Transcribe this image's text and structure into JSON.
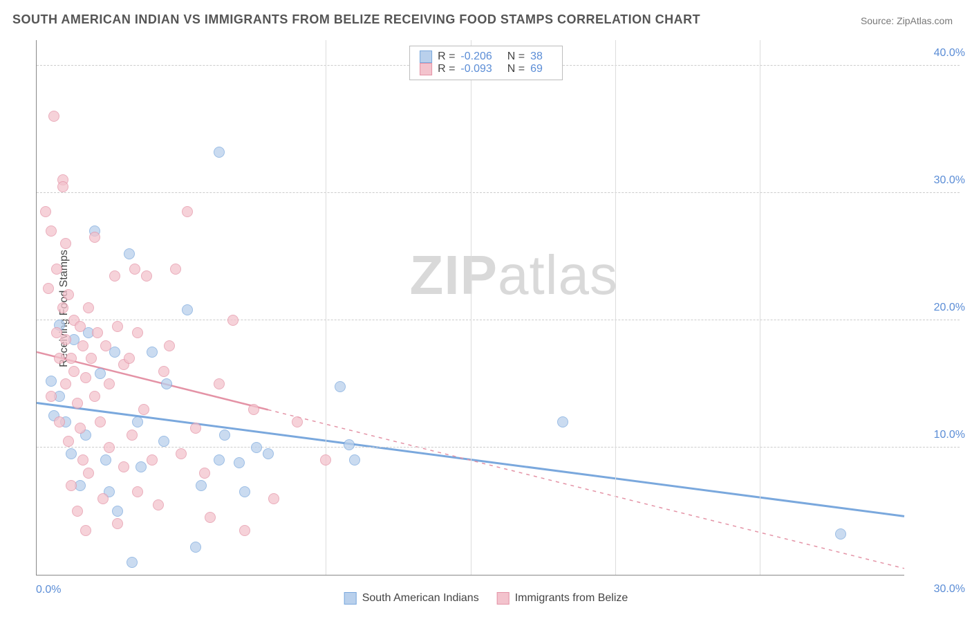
{
  "title": "SOUTH AMERICAN INDIAN VS IMMIGRANTS FROM BELIZE RECEIVING FOOD STAMPS CORRELATION CHART",
  "source_label": "Source: ",
  "source_name": "ZipAtlas.com",
  "ylabel": "Receiving Food Stamps",
  "watermark_bold": "ZIP",
  "watermark_light": "atlas",
  "chart": {
    "type": "scatter",
    "x_range": [
      0,
      30
    ],
    "y_range": [
      0,
      42
    ],
    "y_ticks": [
      10,
      20,
      30,
      40
    ],
    "y_tick_labels": [
      "10.0%",
      "20.0%",
      "30.0%",
      "40.0%"
    ],
    "x_tick_left": "0.0%",
    "x_tick_right": "30.0%",
    "x_minor_positions": [
      10,
      15,
      20,
      25
    ],
    "background": "#ffffff",
    "grid_color": "#cccccc",
    "axis_color": "#888888",
    "marker_radius": 8,
    "marker_opacity": 0.75
  },
  "series": [
    {
      "name": "South American Indians",
      "color_fill": "#b9d0ec",
      "color_stroke": "#7aa8dd",
      "R": "-0.206",
      "N": "38",
      "trend": {
        "x1": 0,
        "y1": 13.5,
        "x2": 30,
        "y2": 4.6,
        "solid_until_x": 30,
        "width": 3
      },
      "points": [
        [
          0.5,
          15.2
        ],
        [
          0.6,
          12.5
        ],
        [
          0.8,
          19.6
        ],
        [
          0.8,
          14.0
        ],
        [
          1.0,
          12.0
        ],
        [
          1.2,
          9.5
        ],
        [
          1.3,
          18.5
        ],
        [
          1.5,
          7.0
        ],
        [
          1.7,
          11.0
        ],
        [
          1.8,
          19.0
        ],
        [
          2.0,
          27.0
        ],
        [
          2.2,
          15.8
        ],
        [
          2.4,
          9.0
        ],
        [
          2.5,
          6.5
        ],
        [
          2.7,
          17.5
        ],
        [
          2.8,
          5.0
        ],
        [
          3.2,
          25.2
        ],
        [
          3.3,
          1.0
        ],
        [
          3.5,
          12.0
        ],
        [
          3.6,
          8.5
        ],
        [
          4.0,
          17.5
        ],
        [
          4.4,
          10.5
        ],
        [
          4.5,
          15.0
        ],
        [
          5.2,
          20.8
        ],
        [
          5.5,
          2.2
        ],
        [
          5.7,
          7.0
        ],
        [
          6.3,
          33.2
        ],
        [
          6.3,
          9.0
        ],
        [
          6.5,
          11.0
        ],
        [
          7.0,
          8.8
        ],
        [
          7.2,
          6.5
        ],
        [
          7.6,
          10.0
        ],
        [
          8.0,
          9.5
        ],
        [
          10.5,
          14.8
        ],
        [
          10.8,
          10.2
        ],
        [
          11.0,
          9.0
        ],
        [
          18.2,
          12.0
        ],
        [
          27.8,
          3.2
        ]
      ]
    },
    {
      "name": "Immigrants from Belize",
      "color_fill": "#f3c3cd",
      "color_stroke": "#e493a6",
      "R": "-0.093",
      "N": "69",
      "trend": {
        "x1": 0,
        "y1": 17.5,
        "x2": 30,
        "y2": 0.5,
        "solid_until_x": 8,
        "width": 2.5
      },
      "points": [
        [
          0.3,
          28.5
        ],
        [
          0.4,
          22.5
        ],
        [
          0.5,
          27.0
        ],
        [
          0.5,
          14.0
        ],
        [
          0.6,
          36.0
        ],
        [
          0.7,
          24.0
        ],
        [
          0.7,
          19.0
        ],
        [
          0.8,
          17.0
        ],
        [
          0.8,
          12.0
        ],
        [
          0.9,
          31.0
        ],
        [
          0.9,
          30.5
        ],
        [
          0.9,
          21.0
        ],
        [
          1.0,
          26.0
        ],
        [
          1.0,
          18.5
        ],
        [
          1.0,
          15.0
        ],
        [
          1.1,
          22.0
        ],
        [
          1.1,
          10.5
        ],
        [
          1.2,
          17.0
        ],
        [
          1.2,
          7.0
        ],
        [
          1.3,
          20.0
        ],
        [
          1.3,
          16.0
        ],
        [
          1.4,
          13.5
        ],
        [
          1.4,
          5.0
        ],
        [
          1.5,
          19.5
        ],
        [
          1.5,
          11.5
        ],
        [
          1.6,
          18.0
        ],
        [
          1.6,
          9.0
        ],
        [
          1.7,
          15.5
        ],
        [
          1.7,
          3.5
        ],
        [
          1.8,
          21.0
        ],
        [
          1.8,
          8.0
        ],
        [
          1.9,
          17.0
        ],
        [
          2.0,
          26.5
        ],
        [
          2.0,
          14.0
        ],
        [
          2.1,
          19.0
        ],
        [
          2.2,
          12.0
        ],
        [
          2.3,
          6.0
        ],
        [
          2.4,
          18.0
        ],
        [
          2.5,
          15.0
        ],
        [
          2.5,
          10.0
        ],
        [
          2.7,
          23.5
        ],
        [
          2.8,
          19.5
        ],
        [
          2.8,
          4.0
        ],
        [
          3.0,
          16.5
        ],
        [
          3.0,
          8.5
        ],
        [
          3.2,
          17.0
        ],
        [
          3.3,
          11.0
        ],
        [
          3.4,
          24.0
        ],
        [
          3.5,
          19.0
        ],
        [
          3.5,
          6.5
        ],
        [
          3.7,
          13.0
        ],
        [
          3.8,
          23.5
        ],
        [
          4.0,
          9.0
        ],
        [
          4.2,
          5.5
        ],
        [
          4.4,
          16.0
        ],
        [
          4.6,
          18.0
        ],
        [
          4.8,
          24.0
        ],
        [
          5.0,
          9.5
        ],
        [
          5.2,
          28.5
        ],
        [
          5.5,
          11.5
        ],
        [
          5.8,
          8.0
        ],
        [
          6.0,
          4.5
        ],
        [
          6.3,
          15.0
        ],
        [
          6.8,
          20.0
        ],
        [
          7.2,
          3.5
        ],
        [
          7.5,
          13.0
        ],
        [
          8.2,
          6.0
        ],
        [
          9.0,
          12.0
        ],
        [
          10.0,
          9.0
        ]
      ]
    }
  ],
  "legend_top": [
    {
      "swatch": 0,
      "r_label": "R =",
      "n_label": "N ="
    },
    {
      "swatch": 1,
      "r_label": "R =",
      "n_label": "N ="
    }
  ],
  "legend_bottom": [
    {
      "swatch": 0
    },
    {
      "swatch": 1
    }
  ]
}
